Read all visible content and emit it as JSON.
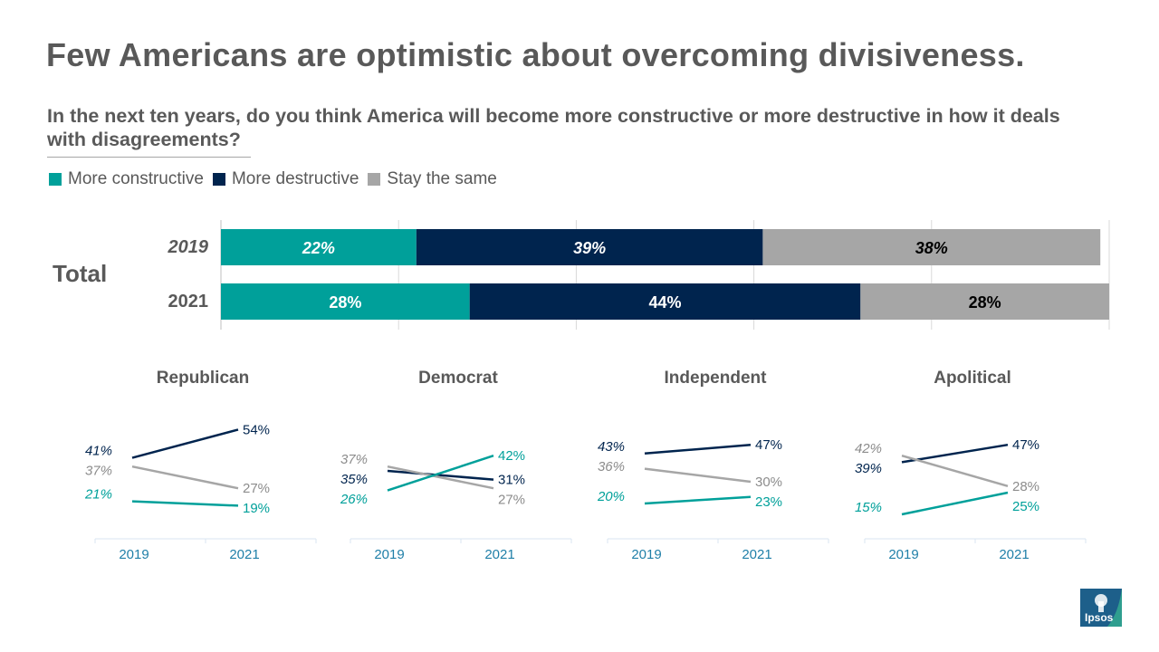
{
  "title": "Few Americans are optimistic about overcoming divisiveness.",
  "subtitle": "In the next ten years, do you think America will become more constructive or more destructive in how it deals with disagreements?",
  "legend": [
    {
      "label": "More constructive",
      "color": "#00a09a"
    },
    {
      "label": "More destructive",
      "color": "#00244e"
    },
    {
      "label": "Stay the same",
      "color": "#a6a6a6"
    }
  ],
  "colors": {
    "constructive": "#00a09a",
    "destructive": "#00244e",
    "same": "#a6a6a6"
  },
  "chart_data": [
    {
      "type": "bar",
      "orientation": "horizontal",
      "stacked": true,
      "group_label": "Total",
      "categories": [
        "2019",
        "2021"
      ],
      "series": [
        {
          "name": "More constructive",
          "values": [
            22,
            28
          ],
          "labels": [
            "22%",
            "28%"
          ]
        },
        {
          "name": "More destructive",
          "values": [
            39,
            44
          ],
          "labels": [
            "39%",
            "44%"
          ]
        },
        {
          "name": "Stay the same",
          "values": [
            38,
            28
          ],
          "labels": [
            "38%",
            "28%"
          ]
        }
      ],
      "xlim": [
        0,
        100
      ]
    },
    {
      "type": "line",
      "title": "Republican",
      "x": [
        "2019",
        "2021"
      ],
      "series": [
        {
          "name": "More destructive",
          "values": [
            41,
            54
          ],
          "labels": [
            "41%",
            "54%"
          ]
        },
        {
          "name": "Stay the same",
          "values": [
            37,
            27
          ],
          "labels": [
            "37%",
            "27%"
          ]
        },
        {
          "name": "More constructive",
          "values": [
            21,
            19
          ],
          "labels": [
            "21%",
            "19%"
          ]
        }
      ]
    },
    {
      "type": "line",
      "title": "Democrat",
      "x": [
        "2019",
        "2021"
      ],
      "series": [
        {
          "name": "More destructive",
          "values": [
            35,
            31
          ],
          "labels": [
            "35%",
            "31%"
          ]
        },
        {
          "name": "Stay the same",
          "values": [
            37,
            27
          ],
          "labels": [
            "37%",
            "27%"
          ]
        },
        {
          "name": "More constructive",
          "values": [
            26,
            42
          ],
          "labels": [
            "26%",
            "42%"
          ]
        }
      ]
    },
    {
      "type": "line",
      "title": "Independent",
      "x": [
        "2019",
        "2021"
      ],
      "series": [
        {
          "name": "More destructive",
          "values": [
            43,
            47
          ],
          "labels": [
            "43%",
            "47%"
          ]
        },
        {
          "name": "Stay the same",
          "values": [
            36,
            30
          ],
          "labels": [
            "36%",
            "30%"
          ]
        },
        {
          "name": "More constructive",
          "values": [
            20,
            23
          ],
          "labels": [
            "20%",
            "23%"
          ]
        }
      ]
    },
    {
      "type": "line",
      "title": "Apolitical",
      "x": [
        "2019",
        "2021"
      ],
      "series": [
        {
          "name": "More destructive",
          "values": [
            39,
            47
          ],
          "labels": [
            "39%",
            "47%"
          ]
        },
        {
          "name": "Stay the same",
          "values": [
            42,
            28
          ],
          "labels": [
            "42%",
            "28%"
          ]
        },
        {
          "name": "More constructive",
          "values": [
            15,
            25
          ],
          "labels": [
            "15%",
            "25%"
          ]
        }
      ]
    }
  ],
  "logo": {
    "text": "Ipsos"
  }
}
